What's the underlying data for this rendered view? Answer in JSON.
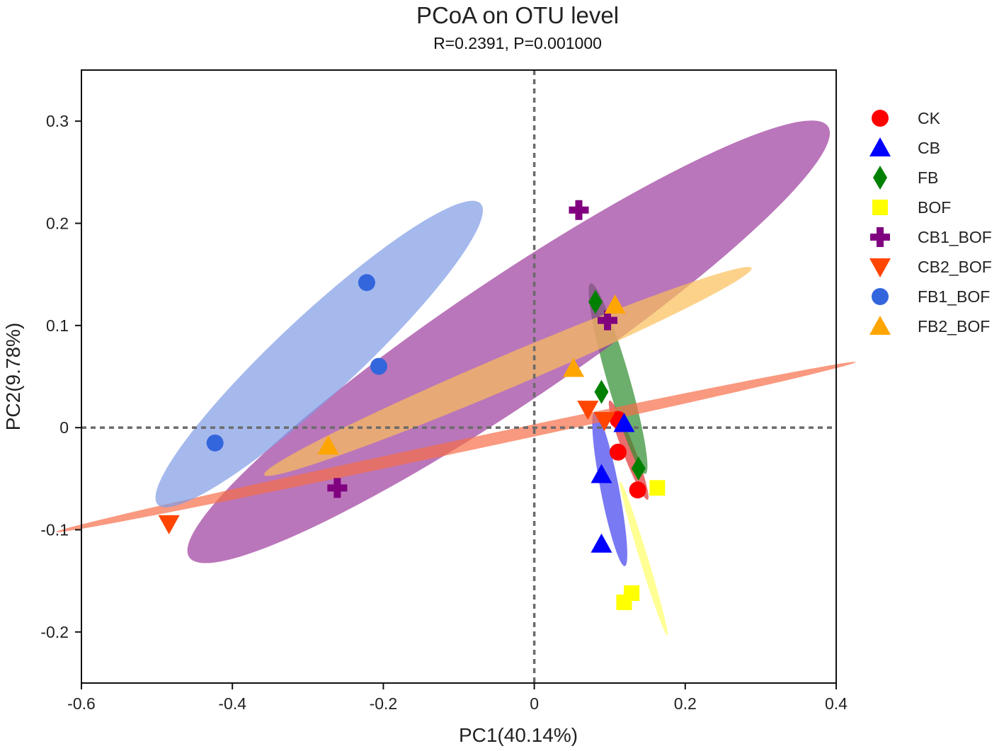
{
  "chart_data": {
    "type": "scatter",
    "title": "PCoA on OTU level",
    "subtitle": "R=0.2391, P=0.001000",
    "xlabel": "PC1(40.14%)",
    "ylabel": "PC2(9.78%)",
    "xlim": [
      -0.6,
      0.4
    ],
    "ylim": [
      -0.25,
      0.35
    ],
    "xticks": [
      -0.6,
      -0.4,
      -0.2,
      0,
      0.2,
      0.4
    ],
    "xtick_labels": [
      "-0.6",
      "-0.4",
      "-0.2",
      "0",
      "0.2",
      "0.4"
    ],
    "yticks": [
      -0.2,
      -0.1,
      0,
      0.1,
      0.2,
      0.3
    ],
    "ytick_labels": [
      "-0.2",
      "-0.1",
      "0",
      "0.1",
      "0.2",
      "0.3"
    ],
    "reference_lines": {
      "x": 0,
      "y": 0,
      "style": "dotted"
    },
    "legend_position": "right",
    "series": [
      {
        "name": "CK",
        "marker": "circle",
        "color": "#ff0000",
        "points": [
          [
            0.111,
            0.008
          ],
          [
            0.111,
            -0.024
          ],
          [
            0.137,
            -0.061
          ]
        ],
        "ellipse": {
          "center": [
            0.125,
            -0.022
          ],
          "semi_axes": [
            0.006,
            0.052
          ],
          "angle_deg": 21,
          "color": "#e03030"
        }
      },
      {
        "name": "CB",
        "marker": "triangle-up",
        "color": "#0000ff",
        "points": [
          [
            0.119,
            0.004
          ],
          [
            0.089,
            -0.046
          ],
          [
            0.089,
            -0.114
          ]
        ],
        "ellipse": {
          "center": [
            0.1,
            -0.06
          ],
          "semi_axes": [
            0.009,
            0.077
          ],
          "angle_deg": 11,
          "color": "#4040f0"
        }
      },
      {
        "name": "FB",
        "marker": "diamond",
        "color": "#008000",
        "points": [
          [
            0.081,
            0.123
          ],
          [
            0.089,
            0.035
          ],
          [
            0.138,
            -0.04
          ]
        ],
        "ellipse": {
          "center": [
            0.111,
            0.048
          ],
          "semi_axes": [
            0.011,
            0.097
          ],
          "angle_deg": 16,
          "color": "#2e8b2e"
        }
      },
      {
        "name": "BOF",
        "marker": "square",
        "color": "#ffff00",
        "points": [
          [
            0.163,
            -0.059
          ],
          [
            0.129,
            -0.162
          ],
          [
            0.119,
            -0.171
          ]
        ],
        "ellipse": {
          "center": [
            0.145,
            -0.128
          ],
          "semi_axes": [
            0.004,
            0.079
          ],
          "angle_deg": 17,
          "color": "#ffff66"
        }
      },
      {
        "name": "CB1_BOF",
        "marker": "plus",
        "color": "#800080",
        "points": [
          [
            0.059,
            0.213
          ],
          [
            0.097,
            0.105
          ],
          [
            -0.261,
            -0.059
          ]
        ],
        "ellipse": {
          "center": [
            -0.034,
            0.084
          ],
          "semi_axes": [
            0.377,
            0.06
          ],
          "angle_deg": 34,
          "color": "#9c3c9c"
        }
      },
      {
        "name": "CB2_BOF",
        "marker": "triangle-down",
        "color": "#ff4500",
        "points": [
          [
            0.071,
            0.018
          ],
          [
            0.093,
            0.007
          ],
          [
            -0.484,
            -0.094
          ]
        ],
        "ellipse": {
          "center": [
            -0.104,
            -0.019
          ],
          "semi_axes": [
            0.4,
            0.006
          ],
          "angle_deg": 12,
          "color": "#f76d48"
        }
      },
      {
        "name": "FB1_BOF",
        "marker": "circle",
        "color": "#3366dd",
        "points": [
          [
            -0.222,
            0.142
          ],
          [
            -0.206,
            0.06
          ],
          [
            -0.423,
            -0.015
          ]
        ],
        "ellipse": {
          "center": [
            -0.285,
            0.072
          ],
          "semi_axes": [
            0.216,
            0.039
          ],
          "angle_deg": 43,
          "color": "#7f9be6"
        }
      },
      {
        "name": "FB2_BOF",
        "marker": "triangle-up",
        "color": "#ffa500",
        "points": [
          [
            0.107,
            0.12
          ],
          [
            0.052,
            0.058
          ],
          [
            -0.273,
            -0.018
          ]
        ],
        "ellipse": {
          "center": [
            -0.035,
            0.055
          ],
          "semi_axes": [
            0.259,
            0.016
          ],
          "angle_deg": 23,
          "color": "#fbbf5a"
        }
      }
    ]
  }
}
